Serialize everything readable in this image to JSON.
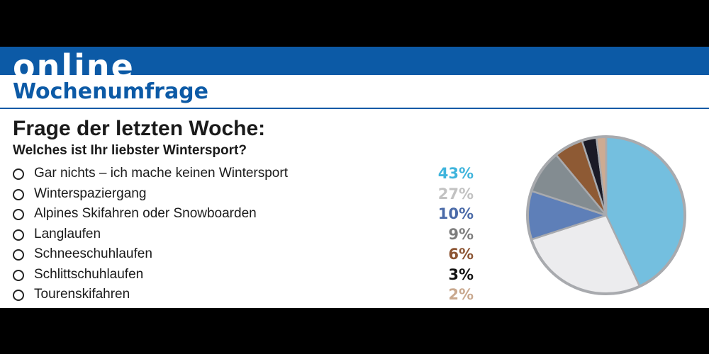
{
  "header": {
    "brand": "online",
    "subtitle": "Wochenumfrage"
  },
  "poll": {
    "heading": "Frage der letzten Woche:",
    "question": "Welches ist Ihr liebster Wintersport?"
  },
  "chart_data": {
    "type": "pie",
    "categories": [
      "Gar nichts – ich mache keinen Wintersport",
      "Winterspaziergang",
      "Alpines Skifahren oder Snowboarden",
      "Langlaufen",
      "Schneeschuhlaufen",
      "Schlittschuhlaufen",
      "Tourenskifahren"
    ],
    "values": [
      43,
      27,
      10,
      9,
      6,
      3,
      2
    ],
    "labels": [
      "43%",
      "27%",
      "10%",
      "9%",
      "6%",
      "3%",
      "2%"
    ],
    "colors": [
      "#74bfdf",
      "#ececee",
      "#5e7fb8",
      "#838c91",
      "#8e5a34",
      "#1a1a26",
      "#cdab92"
    ],
    "label_colors": [
      "#3fb4dc",
      "#c2c2c2",
      "#4a6aa8",
      "#7d7d7d",
      "#8c5432",
      "#111111",
      "#c9a88e"
    ],
    "border_color": "#a8aaae"
  }
}
